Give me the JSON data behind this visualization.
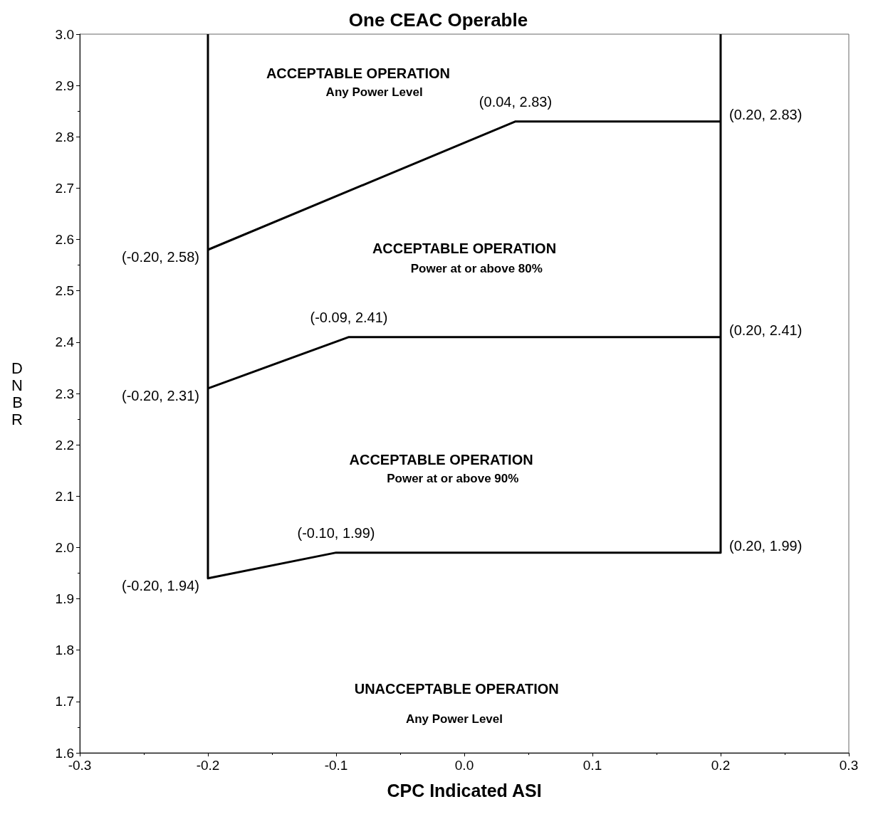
{
  "chart_data": {
    "type": "line",
    "title": "One CEAC Operable",
    "xlabel": "CPC Indicated ASI",
    "ylabel": "DNBR",
    "series": [
      {
        "x": [
          -0.2,
          -0.2,
          -0.1,
          0.2,
          0.2
        ],
        "values": [
          3.0,
          1.94,
          1.99,
          1.99,
          3.0
        ],
        "color": "#000000"
      },
      {
        "x": [
          -0.2,
          -0.09,
          0.2
        ],
        "values": [
          2.31,
          2.41,
          2.41
        ],
        "color": "#000000"
      },
      {
        "x": [
          -0.2,
          0.04,
          0.2
        ],
        "values": [
          2.58,
          2.83,
          2.83
        ],
        "color": "#000000"
      }
    ],
    "xlim": [
      -0.3,
      0.3
    ],
    "xticks": [
      -0.3,
      -0.2,
      -0.1,
      {
        "value": 0,
        "label": "0.0"
      },
      0.1,
      0.2,
      0.3
    ],
    "ylim": [
      1.6,
      3.0
    ],
    "yticks": [
      1.6,
      1.7,
      1.8,
      1.9,
      {
        "value": 2,
        "label": "2.0"
      },
      2.1,
      2.2,
      2.3,
      2.4,
      2.5,
      2.6,
      2.7,
      2.8,
      2.9,
      {
        "value": 3,
        "label": "3.0"
      }
    ],
    "grid": false,
    "marker": "none",
    "line_style": "solid",
    "annotations": [
      "ACCEPTABLE OPERATION",
      "Any Power Level",
      "ACCEPTABLE OPERATION",
      "Power at or above 80%",
      "ACCEPTABLE OPERATION",
      "Power at or above 90%",
      "UNACCEPTABLE OPERATION",
      "Any Power Level",
      {
        "text": "(0.04, 2.83)",
        "x": 0.04,
        "y": 2.83
      },
      {
        "text": "(0.20, 2.83)",
        "x": 0.2,
        "y": 2.83
      },
      {
        "text": "(-0.20, 2.58)",
        "x": -0.2,
        "y": 2.58
      },
      {
        "text": "(-0.09, 2.41)",
        "x": -0.09,
        "y": 2.41
      },
      {
        "text": "(0.20, 2.41)",
        "x": 0.2,
        "y": 2.41
      },
      {
        "text": "(-0.20, 2.31)",
        "x": -0.2,
        "y": 2.31
      },
      {
        "text": "(-0.10, 1.99)",
        "x": -0.1,
        "y": 1.99
      },
      {
        "text": "(0.20, 1.99)",
        "x": 0.2,
        "y": 1.99
      },
      {
        "text": "(-0.20, 1.94)",
        "x": -0.2,
        "y": 1.94
      }
    ]
  }
}
